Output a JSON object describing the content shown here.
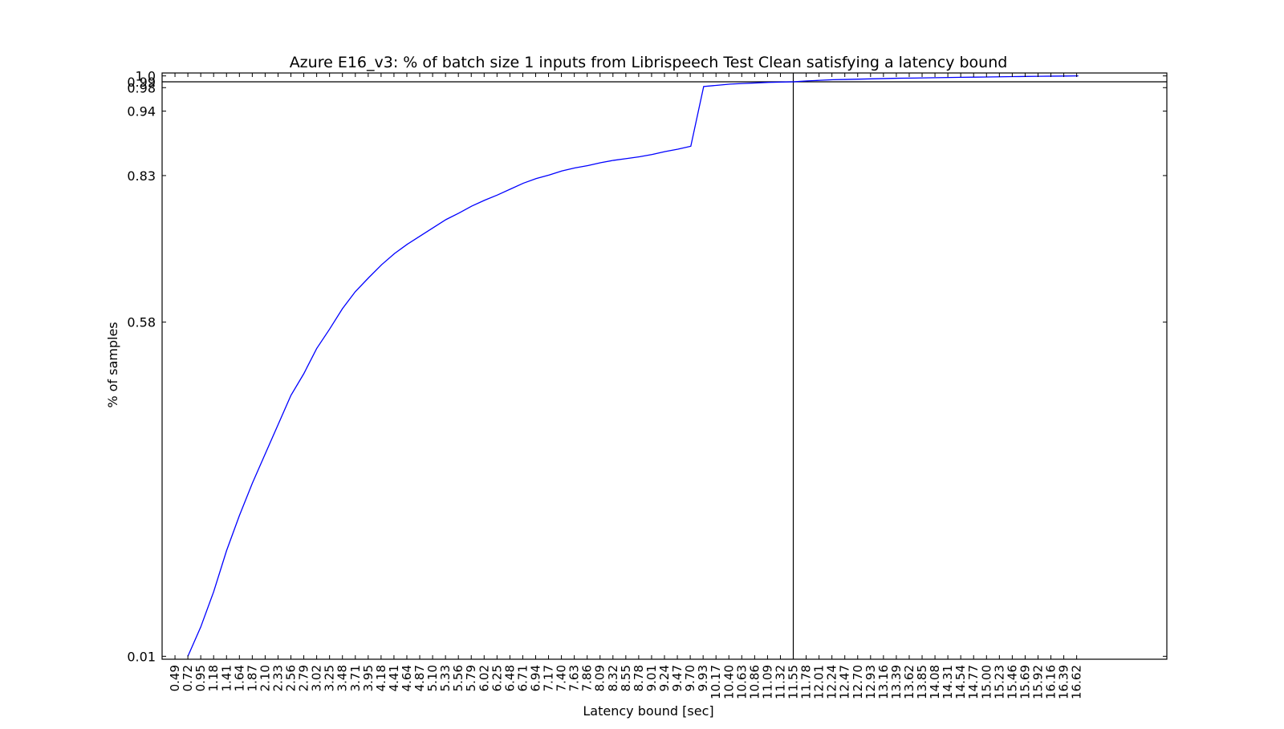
{
  "chart_data": {
    "type": "line",
    "title": "Azure E16_v3: % of batch size 1 inputs from Librispeech Test Clean satisfying a latency bound",
    "xlabel": "Latency bound [sec]",
    "ylabel": "% of samples",
    "x_ticks": [
      "0.49",
      "0.72",
      "0.95",
      "1.18",
      "1.41",
      "1.64",
      "1.87",
      "2.10",
      "2.33",
      "2.56",
      "2.79",
      "3.02",
      "3.25",
      "3.48",
      "3.71",
      "3.95",
      "4.18",
      "4.41",
      "4.64",
      "4.87",
      "5.10",
      "5.33",
      "5.56",
      "5.79",
      "6.02",
      "6.25",
      "6.48",
      "6.71",
      "6.94",
      "7.17",
      "7.40",
      "7.63",
      "7.86",
      "8.09",
      "8.32",
      "8.55",
      "8.78",
      "9.01",
      "9.24",
      "9.47",
      "9.70",
      "9.93",
      "10.17",
      "10.40",
      "10.63",
      "10.86",
      "11.09",
      "11.32",
      "11.55",
      "11.78",
      "12.01",
      "12.24",
      "12.47",
      "12.70",
      "12.93",
      "13.16",
      "13.39",
      "13.62",
      "13.85",
      "14.08",
      "14.31",
      "14.54",
      "14.77",
      "15.00",
      "15.23",
      "15.46",
      "15.69",
      "15.92",
      "16.16",
      "16.39",
      "16.62"
    ],
    "y_ticks": [
      "0.01",
      "0.58",
      "0.83",
      "0.94",
      "0.98",
      "0.99",
      "1.0"
    ],
    "ylim": [
      0.005,
      1.005
    ],
    "xlim_ticks": [
      -1,
      77
    ],
    "grid": false,
    "reference_lines": {
      "y": 0.99,
      "x": "11.55"
    },
    "series": [
      {
        "color": "#0000ff",
        "x": [
          0.72,
          0.95,
          1.18,
          1.41,
          1.64,
          1.87,
          2.1,
          2.33,
          2.56,
          2.79,
          3.02,
          3.25,
          3.48,
          3.71,
          3.95,
          4.18,
          4.41,
          4.64,
          4.87,
          5.1,
          5.33,
          5.56,
          5.79,
          6.02,
          6.25,
          6.48,
          6.71,
          6.94,
          7.17,
          7.4,
          7.63,
          7.86,
          8.09,
          8.32,
          8.55,
          8.78,
          9.01,
          9.24,
          9.47,
          9.7,
          9.93,
          10.17,
          10.4,
          10.63,
          10.86,
          11.09,
          11.32,
          11.55,
          11.78,
          12.01,
          12.24,
          12.47,
          12.7,
          12.93,
          13.16,
          13.39,
          13.62,
          13.85,
          14.08,
          14.31,
          14.54,
          14.77,
          15.0,
          15.23,
          15.46,
          15.69,
          15.92,
          16.16,
          16.39,
          16.62
        ],
        "y": [
          0.01,
          0.06,
          0.12,
          0.19,
          0.25,
          0.305,
          0.355,
          0.405,
          0.455,
          0.492,
          0.535,
          0.568,
          0.603,
          0.632,
          0.656,
          0.678,
          0.697,
          0.713,
          0.727,
          0.741,
          0.755,
          0.766,
          0.778,
          0.788,
          0.797,
          0.807,
          0.817,
          0.825,
          0.831,
          0.838,
          0.843,
          0.847,
          0.852,
          0.856,
          0.859,
          0.862,
          0.866,
          0.871,
          0.875,
          0.88,
          0.982,
          0.984,
          0.986,
          0.987,
          0.988,
          0.989,
          0.9895,
          0.99,
          0.9915,
          0.9925,
          0.9935,
          0.994,
          0.9945,
          0.995,
          0.9955,
          0.996,
          0.9963,
          0.9966,
          0.997,
          0.9973,
          0.9976,
          0.9979,
          0.9982,
          0.9985,
          0.9988,
          0.9991,
          0.9994,
          0.9996,
          0.9998,
          1.0
        ]
      }
    ]
  }
}
